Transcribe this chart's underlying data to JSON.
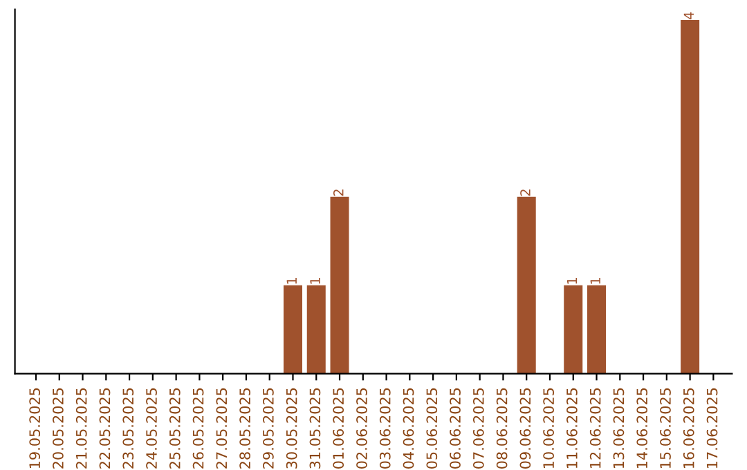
{
  "chart_data": {
    "type": "bar",
    "categories": [
      "19.05.2025",
      "20.05.2025",
      "21.05.2025",
      "22.05.2025",
      "23.05.2025",
      "24.05.2025",
      "25.05.2025",
      "26.05.2025",
      "27.05.2025",
      "28.05.2025",
      "29.05.2025",
      "30.05.2025",
      "31.05.2025",
      "01.06.2025",
      "02.06.2025",
      "03.06.2025",
      "04.06.2025",
      "05.06.2025",
      "06.06.2025",
      "07.06.2025",
      "08.06.2025",
      "09.06.2025",
      "10.06.2025",
      "11.06.2025",
      "12.06.2025",
      "13.06.2025",
      "14.06.2025",
      "15.06.2025",
      "16.06.2025",
      "17.06.2025"
    ],
    "values": [
      0,
      0,
      0,
      0,
      0,
      0,
      0,
      0,
      0,
      0,
      0,
      1,
      1,
      2,
      0,
      0,
      0,
      0,
      0,
      0,
      0,
      2,
      0,
      1,
      1,
      0,
      0,
      0,
      4,
      0
    ],
    "value_labels": [
      null,
      null,
      null,
      null,
      null,
      null,
      null,
      null,
      null,
      null,
      null,
      "1",
      "1",
      "2",
      null,
      null,
      null,
      null,
      null,
      null,
      null,
      "2",
      null,
      "1",
      "1",
      null,
      null,
      null,
      "4",
      null
    ],
    "color": "#a0522d",
    "tick_labels": "x",
    "grid": false,
    "legend": false
  }
}
